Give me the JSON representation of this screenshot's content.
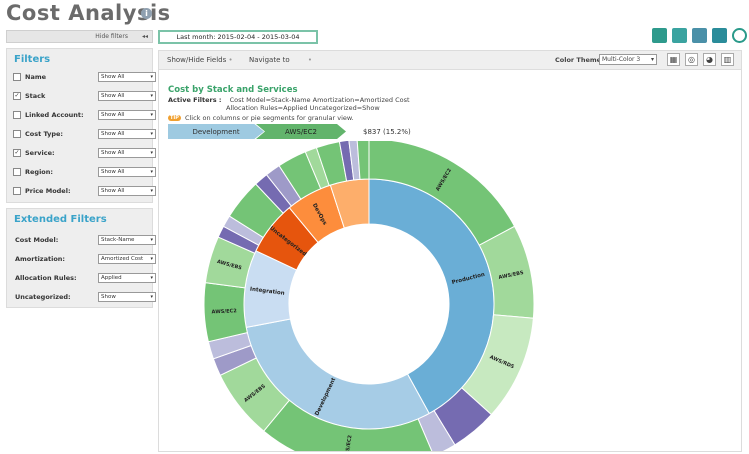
{
  "page": {
    "title": "Cost Analysis"
  },
  "toolbar_top": {
    "hide_filters": "Hide filters",
    "date_range": "Last month: 2015-02-04 - 2015-03-04",
    "icons": [
      "pdf-export-icon",
      "csv-export-icon",
      "excel-export-icon",
      "save-icon",
      "schedule-clock-icon"
    ]
  },
  "filters": {
    "heading": "Filters",
    "items": [
      {
        "label": "Name",
        "checked": false,
        "value": "Show All"
      },
      {
        "label": "Stack",
        "checked": true,
        "value": "Show All"
      },
      {
        "label": "Linked Account:",
        "checked": false,
        "value": "Show All"
      },
      {
        "label": "Cost Type:",
        "checked": false,
        "value": "Show All"
      },
      {
        "label": "Service:",
        "checked": true,
        "value": "Show All"
      },
      {
        "label": "Region:",
        "checked": false,
        "value": "Show All"
      },
      {
        "label": "Price Model:",
        "checked": false,
        "value": "Show All"
      }
    ]
  },
  "extended_filters": {
    "heading": "Extended Filters",
    "items": [
      {
        "label": "Cost Model:",
        "value": "Stack-Name"
      },
      {
        "label": "Amortization:",
        "value": "Amortized Cost"
      },
      {
        "label": "Allocation Rules:",
        "value": "Applied"
      },
      {
        "label": "Uncategorized:",
        "value": "Show"
      }
    ]
  },
  "main_toolbar": {
    "show_hide_fields": "Show/Hide Fields",
    "navigate_to": "Navigate to",
    "color_theme_label": "Color Theme",
    "color_theme_value": "Multi-Color 3"
  },
  "chart_header": {
    "title": "Cost by Stack and Services",
    "active_filters_label": "Active Filters :",
    "filters_line1": "Cost Model=Stack-Name    Amortization=Amortized Cost",
    "filters_line2": "Allocation Rules=Applied    Uncategorized=Show",
    "hint_tip": "TIP",
    "hint": "Click on columns or pie segments for granular view.",
    "breadcrumb": [
      "Development",
      "AWS/EC2"
    ],
    "amount": "$837 (15.2%)"
  },
  "chart_data": {
    "type": "sunburst",
    "inner_ring": [
      {
        "name": "Production",
        "share": 0.42,
        "color": "#6aaed6"
      },
      {
        "name": "Development",
        "share": 0.3,
        "color": "#a6cce6"
      },
      {
        "name": "Integration",
        "share": 0.1,
        "color": "#c9ddf2"
      },
      {
        "name": "Uncategorized",
        "share": 0.07,
        "color": "#e6550d"
      },
      {
        "name": "DevOps",
        "share": 0.06,
        "color": "#fd8d3c"
      },
      {
        "name": "",
        "share": 0.05,
        "color": "#fdae6b"
      }
    ],
    "outer_ring": [
      {
        "name": "AWS/EC2",
        "share": 0.15,
        "color": "#74c476"
      },
      {
        "name": "AWS/EBS",
        "share": 0.08,
        "color": "#a1d99b"
      },
      {
        "name": "AWS/RDS",
        "share": 0.09,
        "color": "#c7e9c0"
      },
      {
        "name": "",
        "share": 0.04,
        "color": "#756bb1"
      },
      {
        "name": "",
        "share": 0.02,
        "color": "#bcbddc"
      },
      {
        "name": "AWS/EC2",
        "share": 0.152,
        "color": "#74c476"
      },
      {
        "name": "AWS/EBS",
        "share": 0.06,
        "color": "#a1d99b"
      },
      {
        "name": "",
        "share": 0.015,
        "color": "#9e9ac8"
      },
      {
        "name": "",
        "share": 0.015,
        "color": "#bcbddc"
      },
      {
        "name": "AWS/EC2",
        "share": 0.05,
        "color": "#74c476"
      },
      {
        "name": "AWS/EBS",
        "share": 0.04,
        "color": "#a1d99b"
      },
      {
        "name": "",
        "share": 0.01,
        "color": "#756bb1"
      },
      {
        "name": "",
        "share": 0.01,
        "color": "#bcbddc"
      },
      {
        "name": "",
        "share": 0.035,
        "color": "#74c476"
      },
      {
        "name": "",
        "share": 0.012,
        "color": "#756bb1"
      },
      {
        "name": "",
        "share": 0.013,
        "color": "#9e9ac8"
      },
      {
        "name": "",
        "share": 0.025,
        "color": "#74c476"
      },
      {
        "name": "",
        "share": 0.01,
        "color": "#a1d99b"
      },
      {
        "name": "",
        "share": 0.02,
        "color": "#74c476"
      },
      {
        "name": "",
        "share": 0.008,
        "color": "#756bb1"
      },
      {
        "name": "",
        "share": 0.007,
        "color": "#bcbddc"
      },
      {
        "name": "",
        "share": 0.01,
        "color": "#74c476"
      }
    ]
  }
}
